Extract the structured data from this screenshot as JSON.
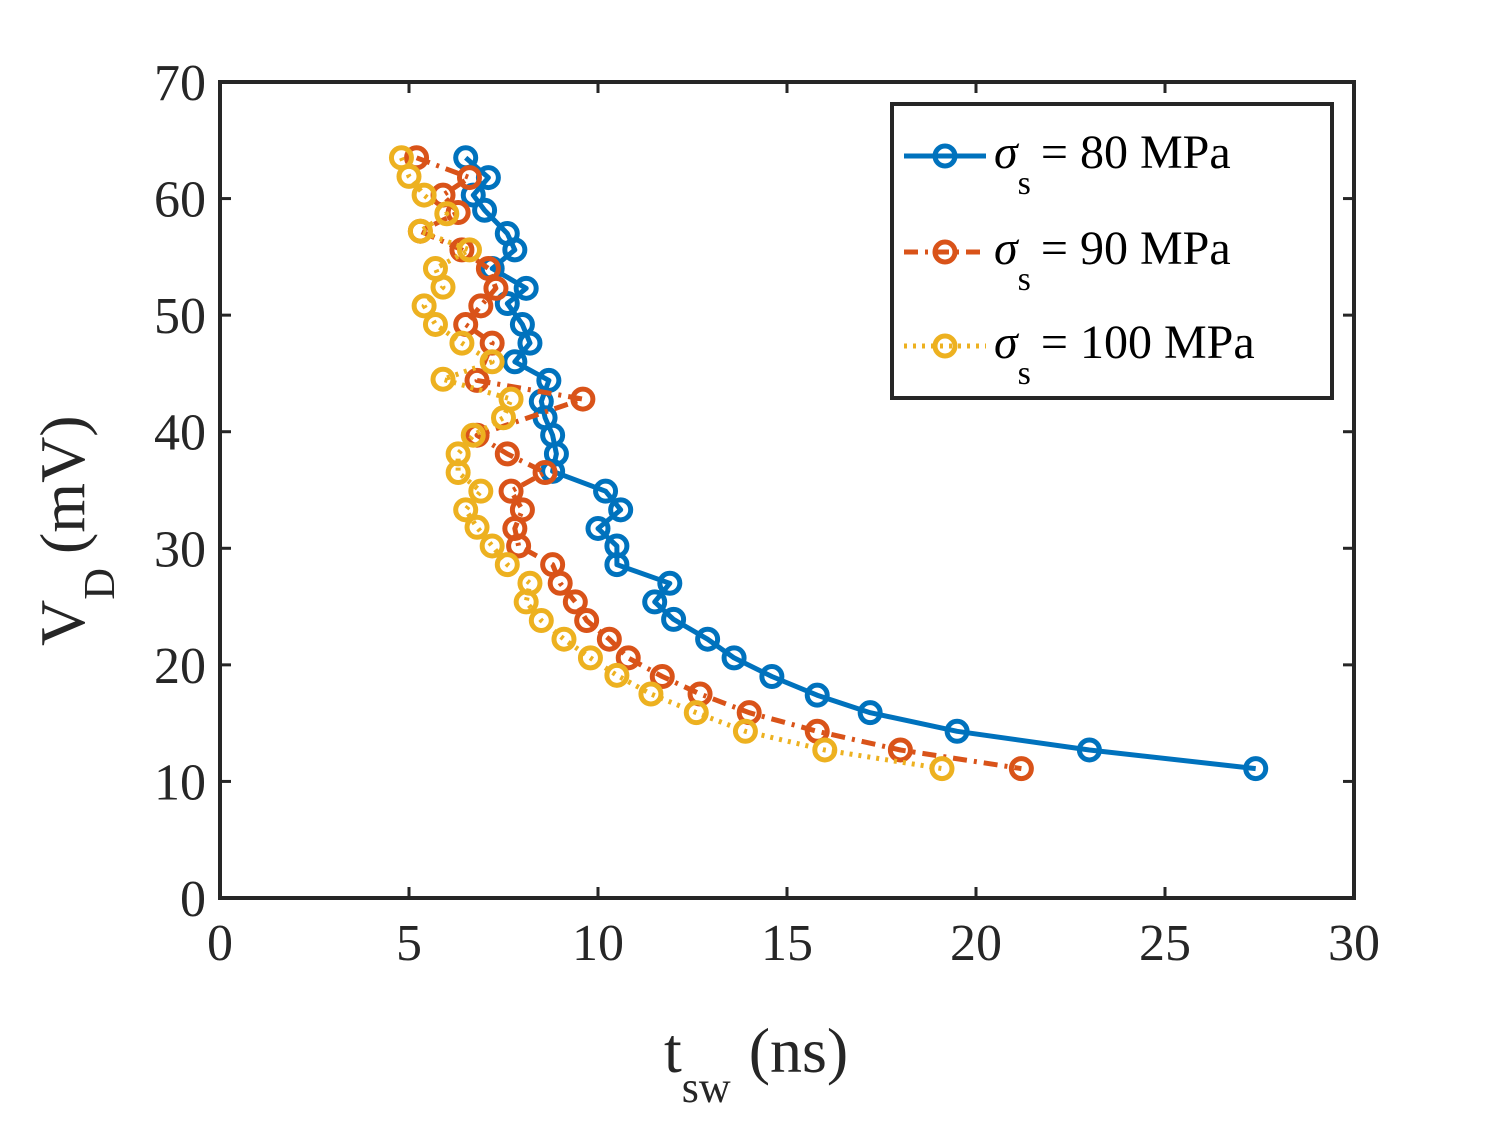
{
  "chart_data": {
    "type": "line",
    "title": "",
    "xlabel": {
      "main": "t",
      "sub": "sw",
      "unit": "(ns)"
    },
    "ylabel": {
      "main": "V",
      "sub": "D",
      "unit": "(mV)"
    },
    "xlim": [
      0,
      30
    ],
    "ylim": [
      0,
      70
    ],
    "xticks": [
      0,
      5,
      10,
      15,
      20,
      25,
      30
    ],
    "yticks": [
      0,
      10,
      20,
      30,
      40,
      50,
      60,
      70
    ],
    "xtick_labels": [
      "0",
      "5",
      "10",
      "15",
      "20",
      "25",
      "30"
    ],
    "ytick_labels": [
      "0",
      "10",
      "20",
      "30",
      "40",
      "50",
      "60",
      "70"
    ],
    "grid": false,
    "legend_position": "top-right",
    "series": [
      {
        "name": "80 MPa",
        "legend": {
          "symbol": "σ",
          "sub": "s",
          "text": "= 80 MPa"
        },
        "color": "#0072BD",
        "line_style": "solid",
        "points": [
          [
            6.5,
            63.5
          ],
          [
            7.1,
            61.8
          ],
          [
            6.7,
            60.3
          ],
          [
            7.0,
            59.0
          ],
          [
            7.6,
            57.0
          ],
          [
            7.8,
            55.6
          ],
          [
            7.2,
            54.0
          ],
          [
            8.1,
            52.3
          ],
          [
            7.6,
            51.0
          ],
          [
            8.0,
            49.2
          ],
          [
            8.2,
            47.6
          ],
          [
            7.8,
            46.0
          ],
          [
            8.7,
            44.4
          ],
          [
            8.5,
            42.6
          ],
          [
            8.6,
            41.2
          ],
          [
            8.8,
            39.7
          ],
          [
            8.9,
            38.1
          ],
          [
            8.8,
            36.6
          ],
          [
            10.2,
            34.9
          ],
          [
            10.6,
            33.3
          ],
          [
            10.0,
            31.7
          ],
          [
            10.5,
            30.2
          ],
          [
            10.5,
            28.6
          ],
          [
            11.9,
            27.0
          ],
          [
            11.5,
            25.4
          ],
          [
            12.0,
            23.9
          ],
          [
            12.9,
            22.2
          ],
          [
            13.6,
            20.6
          ],
          [
            14.6,
            19.0
          ],
          [
            15.8,
            17.4
          ],
          [
            17.2,
            15.9
          ],
          [
            19.5,
            14.3
          ],
          [
            23.0,
            12.7
          ],
          [
            27.4,
            11.1
          ]
        ]
      },
      {
        "name": "90 MPa",
        "legend": {
          "symbol": "σ",
          "sub": "s",
          "text": "= 90 MPa"
        },
        "color": "#D95319",
        "line_style": "dashdot",
        "points": [
          [
            5.2,
            63.5
          ],
          [
            6.6,
            61.8
          ],
          [
            5.9,
            60.3
          ],
          [
            6.3,
            58.8
          ],
          [
            5.3,
            57.2
          ],
          [
            6.4,
            55.6
          ],
          [
            7.1,
            54.0
          ],
          [
            7.3,
            52.3
          ],
          [
            6.9,
            50.8
          ],
          [
            6.5,
            49.2
          ],
          [
            7.2,
            47.6
          ],
          [
            6.8,
            44.4
          ],
          [
            9.6,
            42.8
          ],
          [
            6.8,
            39.7
          ],
          [
            7.6,
            38.1
          ],
          [
            8.6,
            36.5
          ],
          [
            7.7,
            34.9
          ],
          [
            8.0,
            33.3
          ],
          [
            7.8,
            31.7
          ],
          [
            7.9,
            30.2
          ],
          [
            8.8,
            28.6
          ],
          [
            9.0,
            27.0
          ],
          [
            9.4,
            25.4
          ],
          [
            9.7,
            23.8
          ],
          [
            10.3,
            22.2
          ],
          [
            10.8,
            20.6
          ],
          [
            11.7,
            19.0
          ],
          [
            12.7,
            17.5
          ],
          [
            14.0,
            15.9
          ],
          [
            15.8,
            14.3
          ],
          [
            18.0,
            12.7
          ],
          [
            21.2,
            11.1
          ]
        ]
      },
      {
        "name": "100 MPa",
        "legend": {
          "symbol": "σ",
          "sub": "s",
          "text": "= 100 MPa"
        },
        "color": "#EDB120",
        "line_style": "dotted",
        "points": [
          [
            4.8,
            63.5
          ],
          [
            5.0,
            61.9
          ],
          [
            5.4,
            60.3
          ],
          [
            6.0,
            58.7
          ],
          [
            5.3,
            57.2
          ],
          [
            6.6,
            55.6
          ],
          [
            5.7,
            54.0
          ],
          [
            5.9,
            52.4
          ],
          [
            5.4,
            50.8
          ],
          [
            5.7,
            49.2
          ],
          [
            6.4,
            47.6
          ],
          [
            7.2,
            46.0
          ],
          [
            5.9,
            44.5
          ],
          [
            7.7,
            42.8
          ],
          [
            7.5,
            41.2
          ],
          [
            6.7,
            39.7
          ],
          [
            6.3,
            38.1
          ],
          [
            6.3,
            36.5
          ],
          [
            6.9,
            34.9
          ],
          [
            6.5,
            33.3
          ],
          [
            6.8,
            31.8
          ],
          [
            7.2,
            30.2
          ],
          [
            7.6,
            28.6
          ],
          [
            8.2,
            27.0
          ],
          [
            8.1,
            25.4
          ],
          [
            8.5,
            23.8
          ],
          [
            9.1,
            22.2
          ],
          [
            9.8,
            20.6
          ],
          [
            10.5,
            19.1
          ],
          [
            11.4,
            17.5
          ],
          [
            12.6,
            15.9
          ],
          [
            13.9,
            14.3
          ],
          [
            16.0,
            12.7
          ],
          [
            19.1,
            11.1
          ]
        ]
      }
    ]
  }
}
